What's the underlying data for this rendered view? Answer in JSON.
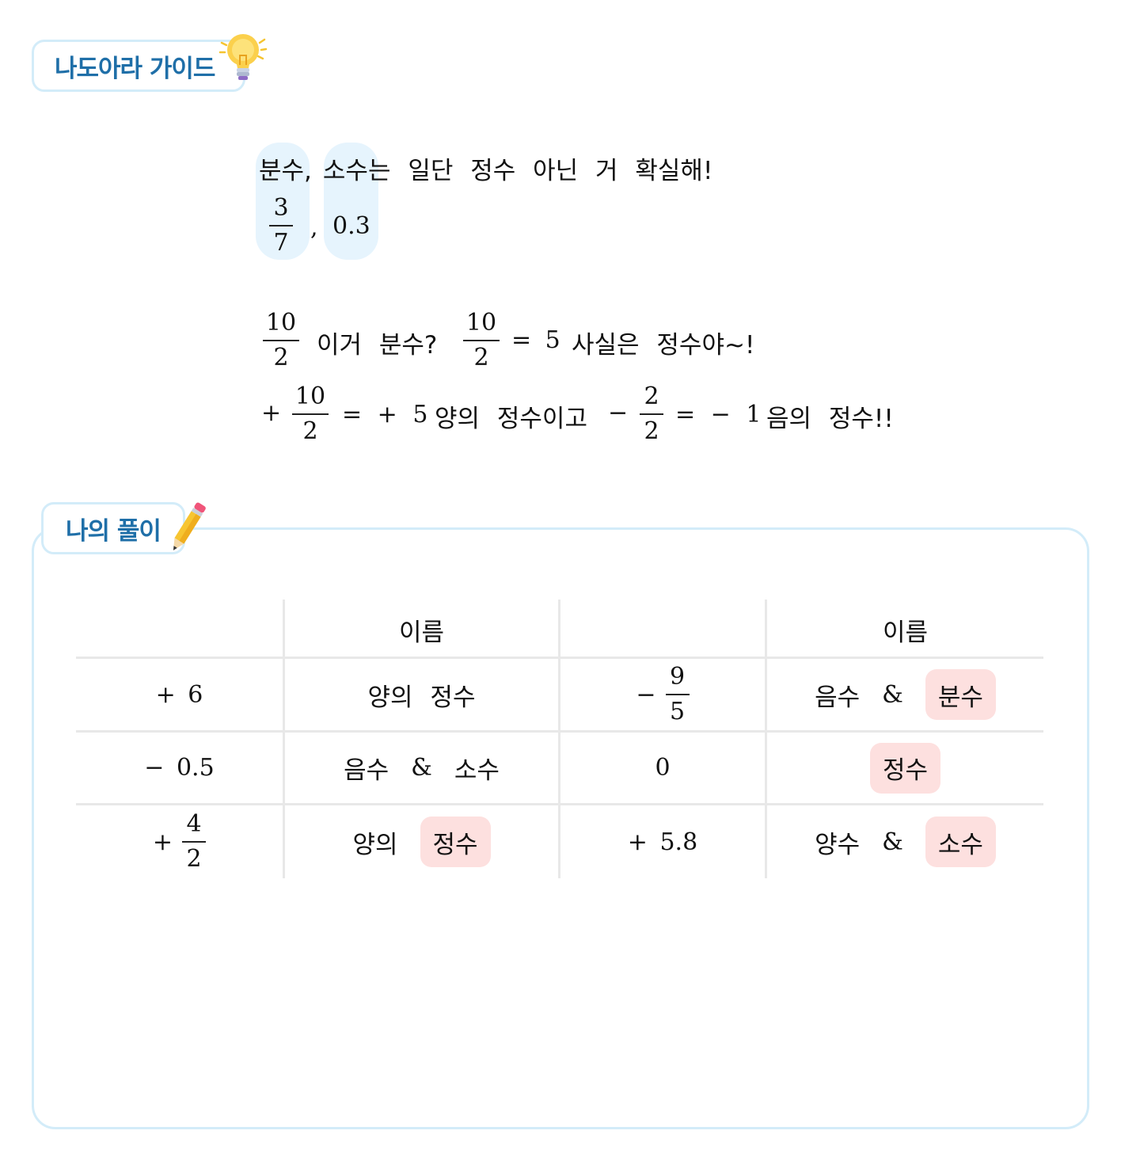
{
  "guide": {
    "title": "나도아라 가이드",
    "line1": {
      "word_a": "분수",
      "comma": ",",
      "word_b": "소수",
      "rest": "는 일단 정수 아닌 거 확실해!"
    },
    "examples": {
      "frac_num": "3",
      "frac_den": "7",
      "comma": ",",
      "decimal": "0.3"
    },
    "line3": {
      "frac1_num": "10",
      "frac1_den": "2",
      "text1": "이거 분수?",
      "frac2_num": "10",
      "frac2_den": "2",
      "eq": "= 5",
      "text2": "사실은 정수야~!"
    },
    "line4": {
      "plus": "+",
      "frac1_num": "10",
      "frac1_den": "2",
      "eq1": "= + 5",
      "text1": "양의 정수이고",
      "minus": "−",
      "frac2_num": "2",
      "frac2_den": "2",
      "eq2": "= − 1",
      "text2": "음의 정수!!"
    }
  },
  "solution": {
    "title": "나의 풀이",
    "table": {
      "header_left": "이름",
      "header_right": "이름",
      "rows": [
        {
          "left_value": "+ 6",
          "left_name": "양의 정수",
          "right_sign": "−",
          "right_num": "9",
          "right_den": "5",
          "right_name_a": "음수",
          "amp": "&",
          "right_name_b": "분수"
        },
        {
          "left_value": "− 0.5",
          "left_name_a": "음수",
          "amp": "&",
          "left_name_b": "소수",
          "right_value": "0",
          "right_name": "정수"
        },
        {
          "left_sign": "+",
          "left_num": "4",
          "left_den": "2",
          "left_name_a": "양의",
          "left_name_b": "정수",
          "right_value": "+ 5.8",
          "right_name_a": "양수",
          "amp": "&",
          "right_name_b": "소수"
        }
      ]
    }
  },
  "colors": {
    "tag_border": "#d3ecf9",
    "tag_text": "#1f6fa8",
    "highlight": "#e6f4fd",
    "pill": "#fde0df"
  },
  "icons": [
    "lightbulb-icon",
    "pencil-icon"
  ]
}
